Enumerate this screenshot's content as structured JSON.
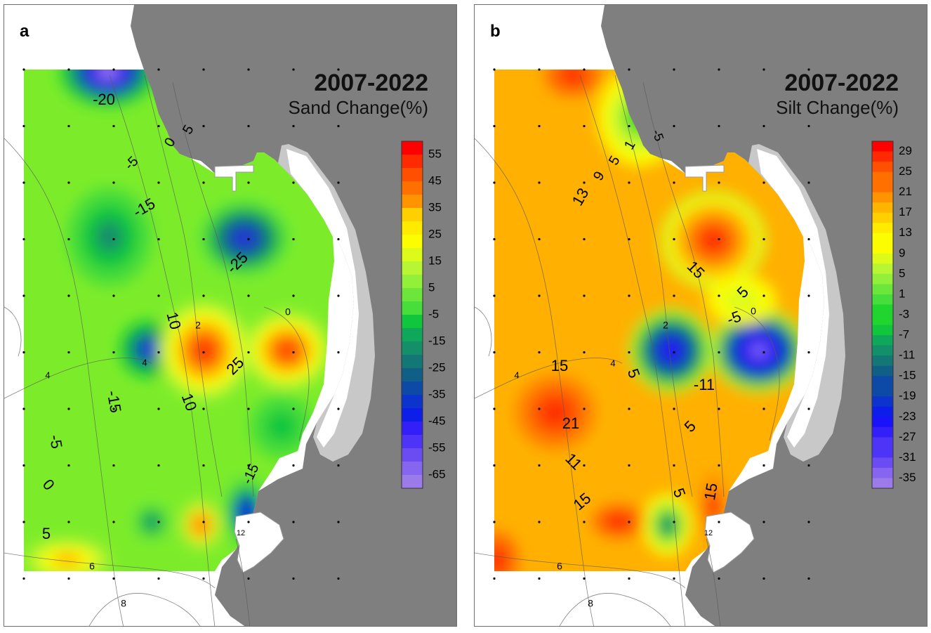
{
  "panels": [
    {
      "letter": "a",
      "title": "2007-2022",
      "subtitle": "Sand Change(%)",
      "colorbar": {
        "labels": [
          "55",
          "45",
          "35",
          "25",
          "15",
          "5",
          "-5",
          "-15",
          "-25",
          "-35",
          "-45",
          "-55",
          "-65"
        ],
        "colors": [
          "#ff0000",
          "#ff2a00",
          "#ff4f00",
          "#ff7000",
          "#ff9400",
          "#ffb400",
          "#ffd000",
          "#ffeb00",
          "#fbfd00",
          "#dcfb1a",
          "#b8f532",
          "#92ef3a",
          "#6ce63a",
          "#47dd3a",
          "#1fd52e",
          "#10c63d",
          "#0fa85a",
          "#138f6a",
          "#137775",
          "#0f5f86",
          "#0d4aa8",
          "#0c33cc",
          "#0c1ee8",
          "#1a12f8",
          "#3320f8",
          "#4d34f6",
          "#6a4cf2",
          "#8666ee",
          "#9b7bea"
        ]
      },
      "contour_labels": [
        "-20",
        "5",
        "0",
        "-5",
        "-15",
        "-25",
        "0",
        "10",
        "2",
        "4",
        "25",
        "4",
        "-15",
        "10",
        "-5",
        "0",
        "-15",
        "5",
        "6",
        "8",
        "12"
      ],
      "base_color": "#7cec2a",
      "spots": [
        {
          "level": -65,
          "note": "deep blue/violet, top-left"
        },
        {
          "level": -25,
          "note": "dark blue, upper middle"
        },
        {
          "level": -35,
          "note": "blue, center-left"
        },
        {
          "level": 45,
          "note": "red, center"
        },
        {
          "level": 45,
          "note": "red, center-right"
        },
        {
          "level": -45,
          "note": "blue, lower right"
        }
      ]
    },
    {
      "letter": "b",
      "title": "2007-2022",
      "subtitle": "Silt Change(%)",
      "colorbar": {
        "labels": [
          "29",
          "25",
          "21",
          "17",
          "13",
          "9",
          "5",
          "1",
          "-3",
          "-7",
          "-11",
          "-15",
          "-19",
          "-23",
          "-27",
          "-31",
          "-35"
        ],
        "colors": [
          "#ff0000",
          "#ff2a00",
          "#ff4f00",
          "#ff7000",
          "#ff9400",
          "#ffb400",
          "#ffd000",
          "#ffeb00",
          "#fbfd00",
          "#dcfb1a",
          "#b8f532",
          "#92ef3a",
          "#6ce63a",
          "#47dd3a",
          "#1fd52e",
          "#10c63d",
          "#0fa85a",
          "#138f6a",
          "#137775",
          "#0f5f86",
          "#0d4aa8",
          "#0c33cc",
          "#0c1ee8",
          "#1a12f8",
          "#3320f8",
          "#4d34f6",
          "#6a4cf2",
          "#8666ee",
          "#9b7bea"
        ]
      },
      "contour_labels": [
        "-5",
        "1",
        "5",
        "9",
        "13",
        "15",
        "5",
        "-5",
        "0",
        "2",
        "4",
        "15",
        "5",
        "-11",
        "21",
        "5",
        "11",
        "15",
        "5",
        "15",
        "6",
        "8",
        "12",
        "4"
      ],
      "base_color": "#ffb000",
      "spots": [
        {
          "level": 25,
          "note": "red, upper middle"
        },
        {
          "level": -23,
          "note": "blue, center"
        },
        {
          "level": -31,
          "note": "blue/violet, center-right"
        },
        {
          "level": 25,
          "note": "red, left"
        },
        {
          "level": -11,
          "note": "green, bottom"
        }
      ]
    }
  ],
  "chart_data": [
    {
      "type": "heatmap",
      "title": "2007-2022",
      "subtitle": "Sand Change(%)",
      "colorbar_range": [
        -65,
        55
      ],
      "colorbar_ticks": [
        55,
        45,
        35,
        25,
        15,
        5,
        -5,
        -15,
        -25,
        -35,
        -45,
        -55,
        -65
      ],
      "contour_values": [
        -25,
        -20,
        -15,
        -5,
        0,
        5,
        10,
        25
      ],
      "depth_contours": [
        2,
        4,
        6,
        8,
        12
      ]
    },
    {
      "type": "heatmap",
      "title": "2007-2022",
      "subtitle": "Silt Change(%)",
      "colorbar_range": [
        -35,
        29
      ],
      "colorbar_ticks": [
        29,
        25,
        21,
        17,
        13,
        9,
        5,
        1,
        -3,
        -7,
        -11,
        -15,
        -19,
        -23,
        -27,
        -31,
        -35
      ],
      "contour_values": [
        -11,
        -5,
        1,
        5,
        9,
        11,
        13,
        15,
        21
      ],
      "depth_contours": [
        2,
        4,
        6,
        8,
        12
      ]
    }
  ]
}
